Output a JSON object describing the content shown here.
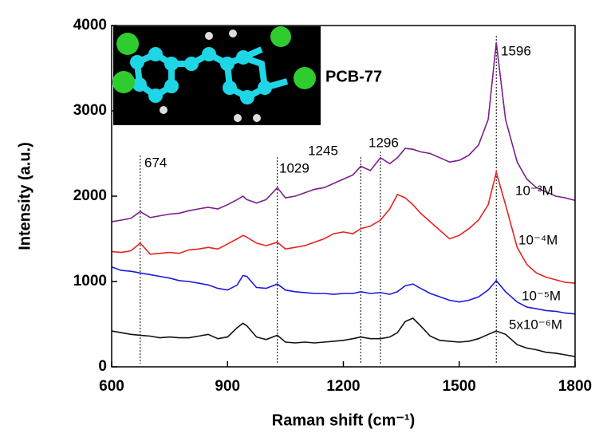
{
  "chart_data": {
    "type": "line",
    "xlabel": "Raman shift (cm⁻¹)",
    "ylabel": "Intensity (a.u.)",
    "inset_label": "PCB-77",
    "xlim": [
      600,
      1800
    ],
    "ylim": [
      0,
      4000
    ],
    "xticks": [
      600,
      900,
      1200,
      1500,
      1800
    ],
    "yticks": [
      0,
      1000,
      2000,
      3000,
      4000
    ],
    "peaks": [
      674,
      1029,
      1245,
      1296,
      1596
    ],
    "x": [
      600,
      625,
      650,
      674,
      700,
      725,
      750,
      775,
      800,
      825,
      850,
      875,
      900,
      925,
      940,
      950,
      975,
      1000,
      1029,
      1050,
      1075,
      1100,
      1125,
      1150,
      1175,
      1200,
      1225,
      1245,
      1270,
      1296,
      1320,
      1340,
      1360,
      1380,
      1400,
      1425,
      1450,
      1475,
      1500,
      1525,
      1550,
      1575,
      1596,
      1620,
      1650,
      1675,
      1700,
      1725,
      1750,
      1775,
      1800
    ],
    "series": [
      {
        "name": "10⁻³M",
        "color": "#7b1f8c",
        "values": [
          1700,
          1720,
          1740,
          1820,
          1750,
          1770,
          1790,
          1800,
          1830,
          1850,
          1870,
          1850,
          1900,
          1960,
          2000,
          1960,
          1920,
          1960,
          2100,
          1980,
          2000,
          2040,
          2080,
          2100,
          2150,
          2200,
          2250,
          2350,
          2300,
          2450,
          2380,
          2450,
          2560,
          2550,
          2520,
          2500,
          2450,
          2400,
          2420,
          2480,
          2600,
          2900,
          3800,
          2900,
          2400,
          2200,
          2100,
          2050,
          2000,
          1980,
          1950
        ]
      },
      {
        "name": "10⁻⁴M",
        "color": "#e8231f",
        "values": [
          1350,
          1340,
          1360,
          1450,
          1320,
          1330,
          1340,
          1330,
          1370,
          1380,
          1400,
          1380,
          1440,
          1500,
          1540,
          1520,
          1450,
          1420,
          1460,
          1380,
          1400,
          1420,
          1460,
          1500,
          1560,
          1580,
          1560,
          1620,
          1650,
          1720,
          1850,
          2020,
          1980,
          1900,
          1800,
          1700,
          1600,
          1500,
          1540,
          1620,
          1720,
          1900,
          2280,
          1900,
          1400,
          1200,
          1100,
          1050,
          1020,
          990,
          980
        ]
      },
      {
        "name": "10⁻⁵M",
        "color": "#1a1adf",
        "values": [
          1170,
          1130,
          1120,
          1100,
          1080,
          1060,
          1040,
          1010,
          1000,
          980,
          960,
          920,
          900,
          960,
          1070,
          1060,
          930,
          920,
          970,
          900,
          880,
          870,
          860,
          860,
          850,
          860,
          860,
          880,
          860,
          870,
          850,
          880,
          950,
          970,
          920,
          860,
          820,
          780,
          760,
          780,
          820,
          900,
          1010,
          880,
          760,
          700,
          680,
          660,
          650,
          630,
          620
        ]
      },
      {
        "name": "5x10⁻⁶M",
        "color": "#111111",
        "values": [
          420,
          400,
          380,
          370,
          360,
          340,
          350,
          340,
          340,
          360,
          380,
          330,
          350,
          460,
          510,
          480,
          350,
          320,
          370,
          290,
          280,
          290,
          280,
          290,
          300,
          310,
          330,
          350,
          330,
          330,
          350,
          400,
          530,
          570,
          480,
          360,
          310,
          300,
          290,
          300,
          330,
          380,
          420,
          380,
          260,
          220,
          200,
          170,
          160,
          140,
          120
        ]
      }
    ]
  }
}
